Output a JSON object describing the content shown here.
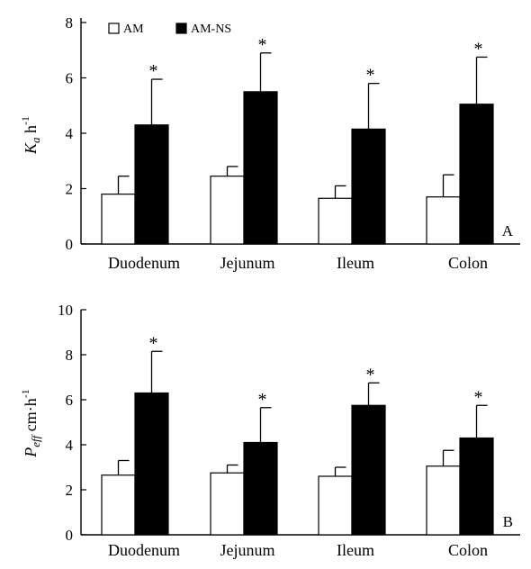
{
  "chart_data": [
    {
      "type": "bar",
      "panel_label": "A",
      "ylabel": {
        "main": "K",
        "sub": "a",
        "unit": " h",
        "sup": "-1"
      },
      "ylim": [
        0,
        8
      ],
      "yticks": [
        "0",
        "2",
        "4",
        "6",
        "8"
      ],
      "categories": [
        "Duodenum",
        "Jejunum",
        "Ileum",
        "Colon"
      ],
      "series": [
        {
          "name": "AM",
          "values": [
            1.8,
            2.45,
            1.65,
            1.7
          ],
          "errors": [
            0.65,
            0.35,
            0.45,
            0.8
          ]
        },
        {
          "name": "AM-NS",
          "values": [
            4.3,
            5.5,
            4.15,
            5.05
          ],
          "errors": [
            1.65,
            1.4,
            1.65,
            1.7
          ]
        }
      ],
      "annotations": [
        "*",
        "*",
        "*",
        "*"
      ],
      "legend": {
        "placement": "top-left",
        "labels": [
          "AM",
          "AM-NS"
        ]
      },
      "grid": false
    },
    {
      "type": "bar",
      "panel_label": "B",
      "ylabel": {
        "main": "P",
        "sub": "eff",
        "unit": " cm·h",
        "sup": "-1"
      },
      "ylim": [
        0,
        10
      ],
      "yticks": [
        "0",
        "2",
        "4",
        "6",
        "8",
        "10"
      ],
      "categories": [
        "Duodenum",
        "Jejunum",
        "Ileum",
        "Colon"
      ],
      "series": [
        {
          "name": "AM",
          "values": [
            2.65,
            2.75,
            2.6,
            3.05
          ],
          "errors": [
            0.65,
            0.35,
            0.4,
            0.7
          ]
        },
        {
          "name": "AM-NS",
          "values": [
            6.3,
            4.1,
            5.75,
            4.3
          ],
          "errors": [
            1.85,
            1.55,
            1.0,
            1.45
          ]
        }
      ],
      "annotations": [
        "*",
        "*",
        "*",
        "*"
      ],
      "grid": false
    }
  ],
  "colors": {
    "am": "#ffffff",
    "am_ns": "#000000",
    "axis": "#000000"
  }
}
